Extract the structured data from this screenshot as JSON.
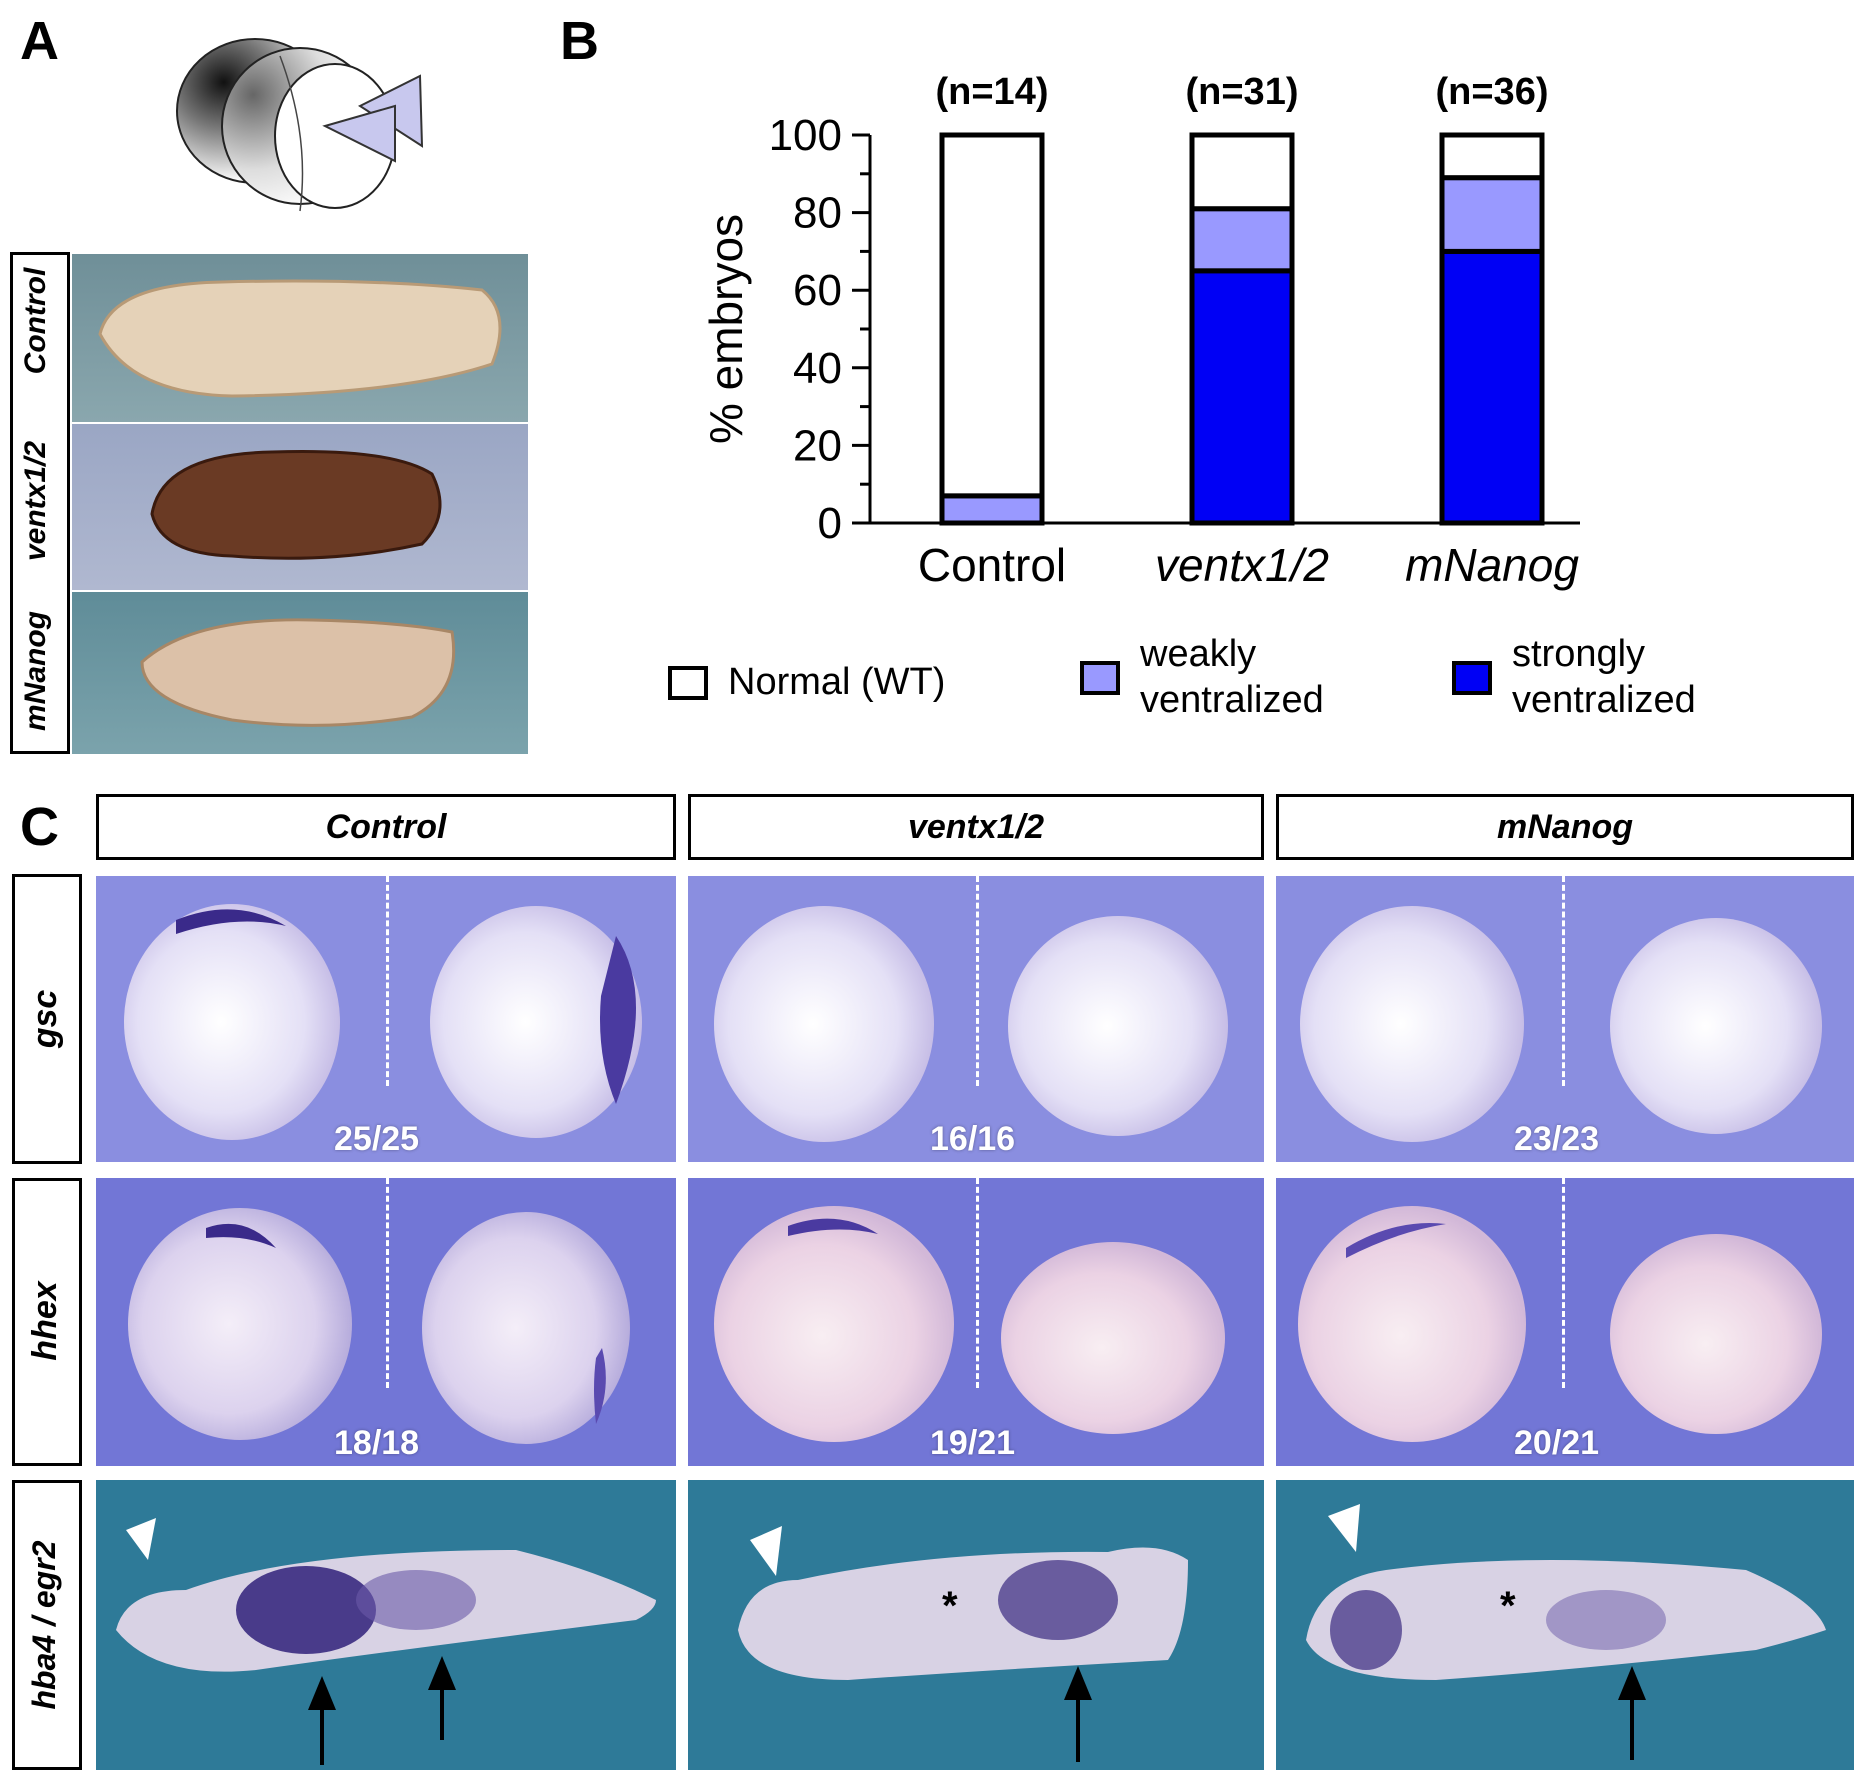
{
  "panels": {
    "a": "A",
    "b": "B",
    "c": "C"
  },
  "panel_a": {
    "rows": [
      {
        "label": "Control"
      },
      {
        "label": "ventx1/2"
      },
      {
        "label": "mNanog"
      }
    ]
  },
  "chart_data": {
    "type": "bar",
    "stacked": true,
    "categories": [
      "Control",
      "ventx1/2",
      "mNanog"
    ],
    "n_labels": [
      "(n=14)",
      "(n=31)",
      "(n=36)"
    ],
    "series": [
      {
        "name": "strongly ventralized",
        "values": [
          0,
          65,
          70
        ],
        "color": "#0000f5"
      },
      {
        "name": "weakly ventralized",
        "values": [
          7,
          16,
          19
        ],
        "color": "#9999ff"
      },
      {
        "name": "Normal (WT)",
        "values": [
          93,
          19,
          11
        ],
        "color": "#ffffff"
      }
    ],
    "ylabel": "% embryos",
    "ylim": [
      0,
      100
    ],
    "yticks": [
      "0",
      "20",
      "40",
      "60",
      "80",
      "100"
    ],
    "legend": [
      {
        "line1": "Normal (WT)",
        "line2": "",
        "color": "#ffffff"
      },
      {
        "line1": "weakly",
        "line2": "ventralized",
        "color": "#9999ff"
      },
      {
        "line1": "strongly",
        "line2": "ventralized",
        "color": "#0000f5"
      }
    ],
    "grid": false,
    "legend_position": "bottom"
  },
  "panel_c": {
    "columns": [
      "Control",
      "ventx1/2",
      "mNanog"
    ],
    "rows": [
      "gsc",
      "hhex",
      "hba4 / egr2"
    ],
    "counts": [
      [
        "25/25",
        "16/16",
        "23/23"
      ],
      [
        "18/18",
        "19/21",
        "20/21"
      ]
    ],
    "asterisk": "*"
  }
}
